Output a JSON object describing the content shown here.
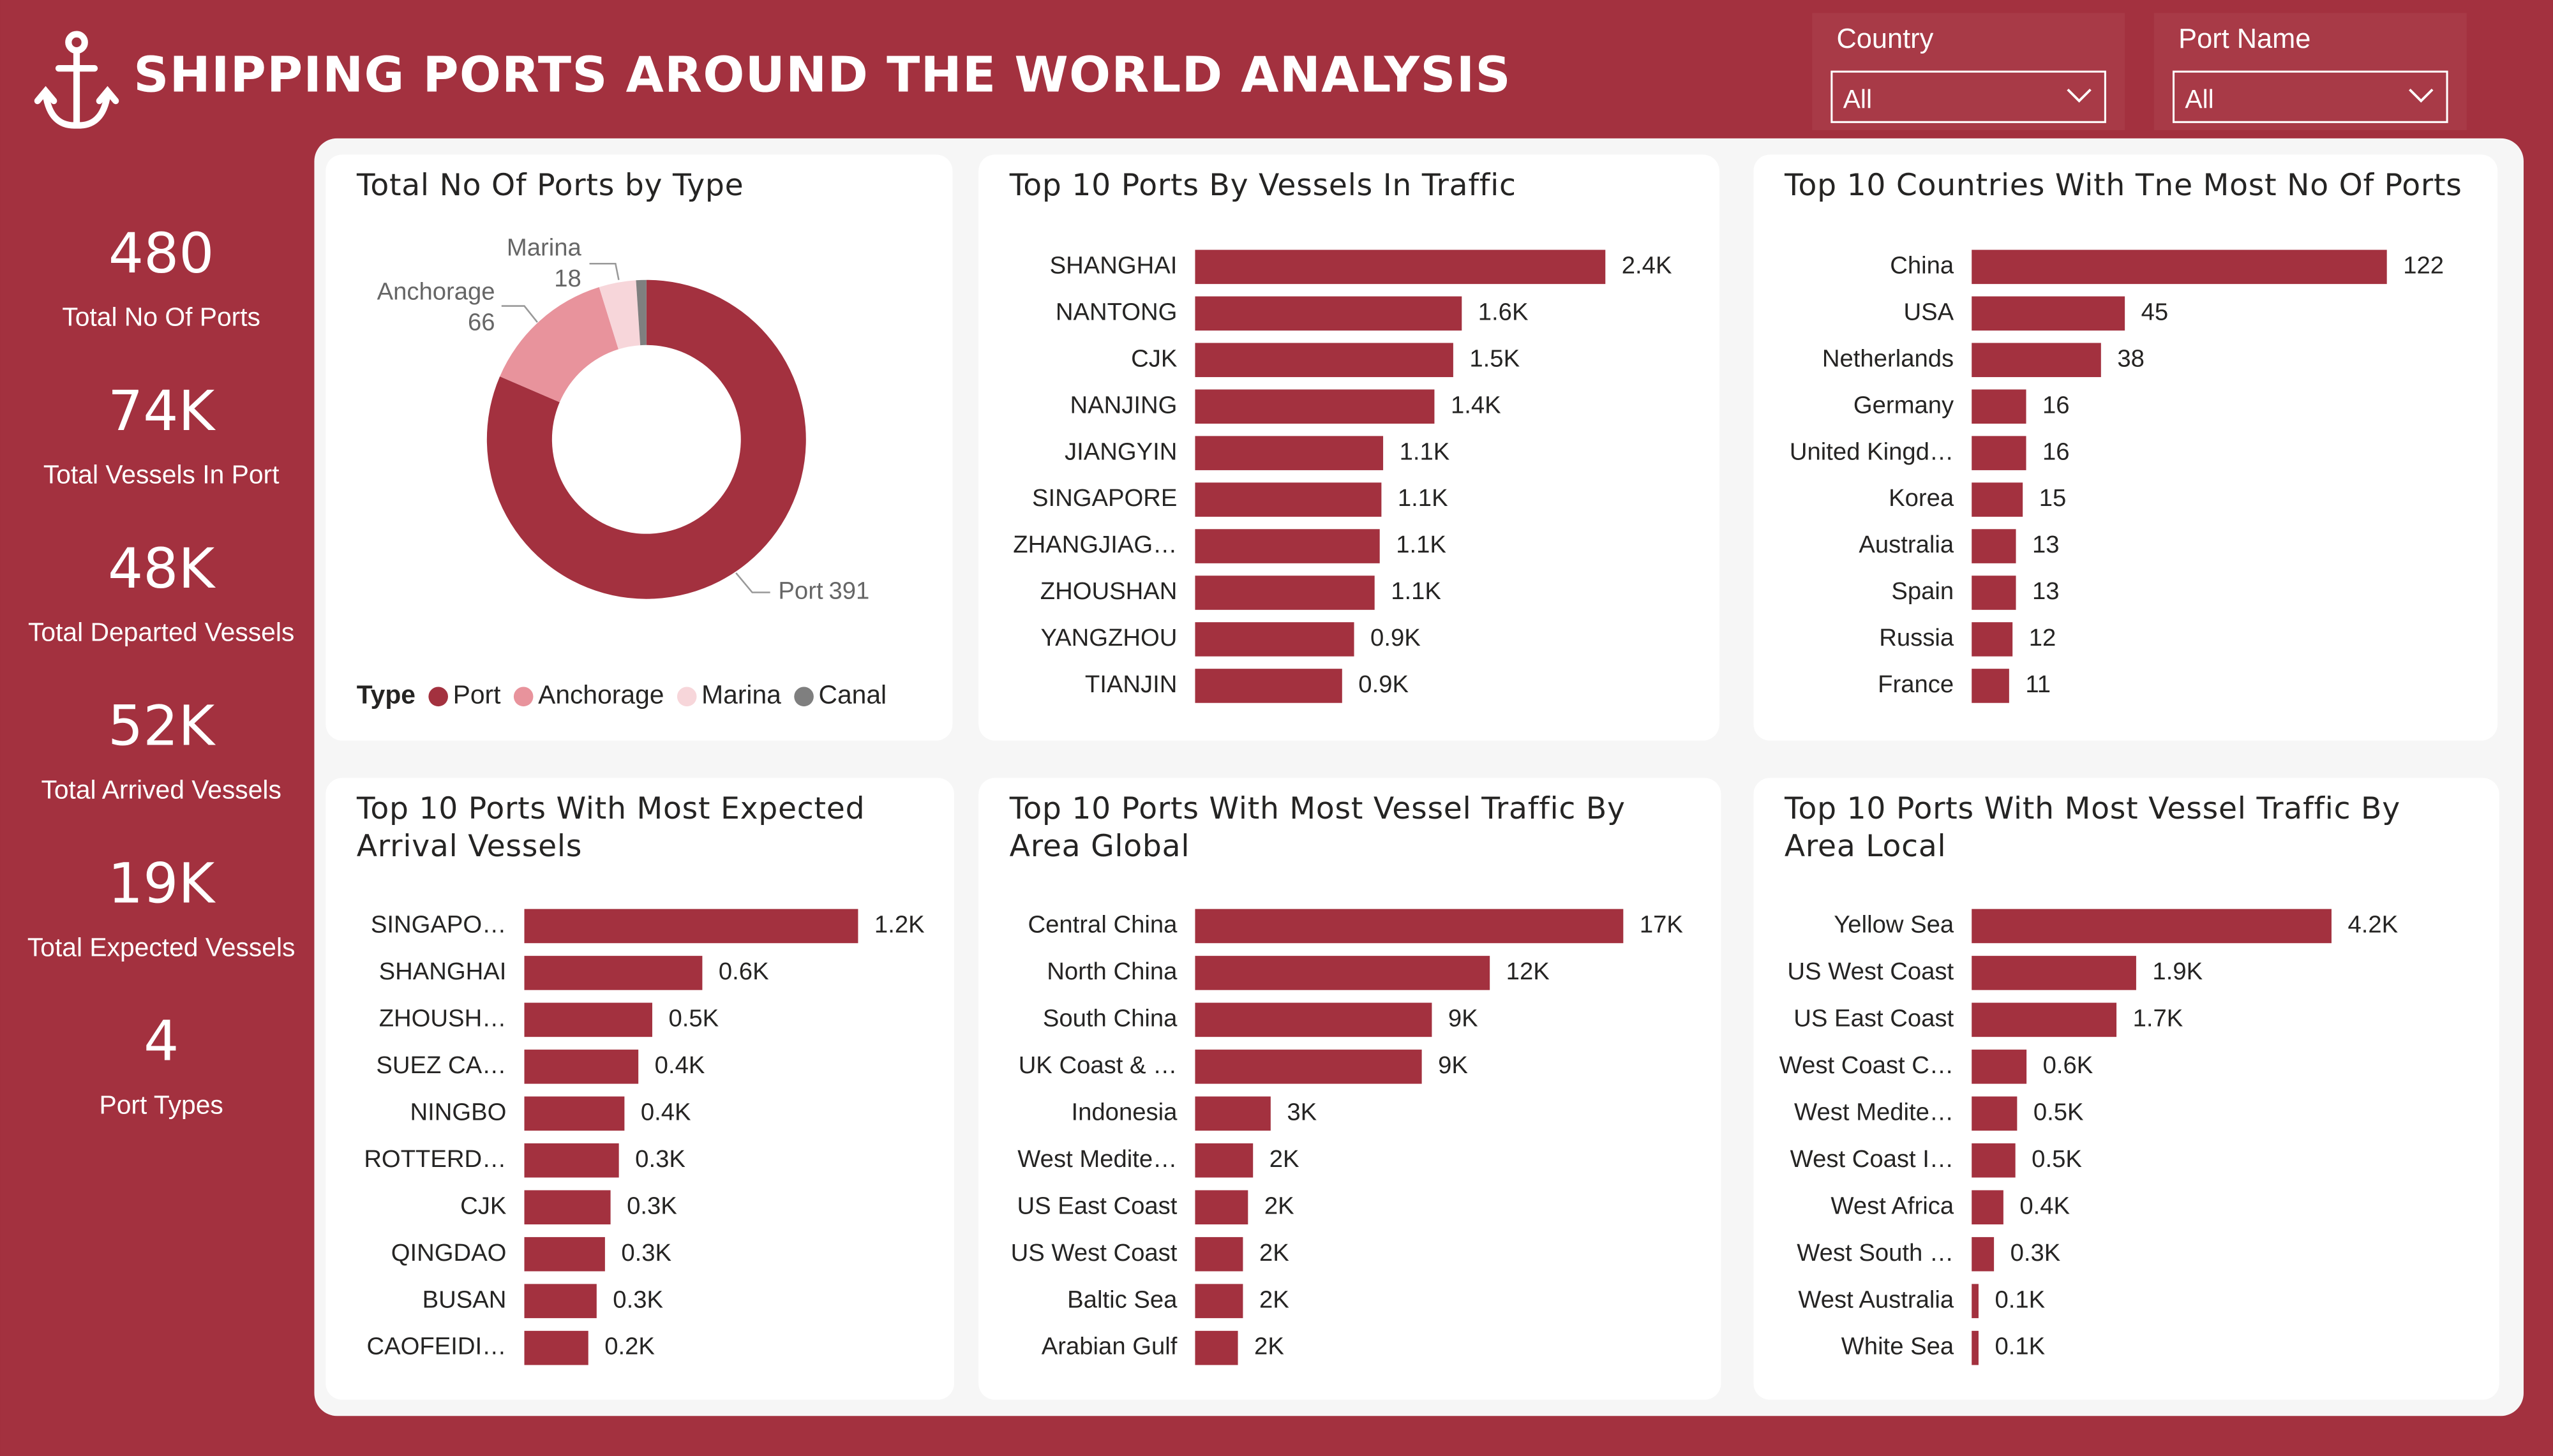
{
  "header": {
    "title": "SHIPPING PORTS AROUND THE WORLD ANALYSIS"
  },
  "slicers": [
    {
      "label": "Country",
      "value": "All"
    },
    {
      "label": "Port Name",
      "value": "All"
    }
  ],
  "kpis": [
    {
      "value": "480",
      "label": "Total No Of Ports"
    },
    {
      "value": "74K",
      "label": "Total Vessels In Port"
    },
    {
      "value": "48K",
      "label": "Total Departed Vessels"
    },
    {
      "value": "52K",
      "label": "Total Arrived Vessels"
    },
    {
      "value": "19K",
      "label": "Total Expected Vessels"
    },
    {
      "value": "4",
      "label": "Port Types"
    }
  ],
  "chart_data": [
    {
      "type": "donut",
      "title": "Total No Of Ports by Type",
      "categories": [
        "Port",
        "Anchorage",
        "Marina",
        "Canal"
      ],
      "values": [
        391,
        66,
        18,
        5
      ],
      "colors": [
        "#a3313f",
        "#e8939c",
        "#f7d6da",
        "#7f7f7f"
      ],
      "legend_title": "Type",
      "legend": "bottom-left"
    },
    {
      "type": "hbar",
      "title": "Top 10 Ports By Vessels In Traffic",
      "categories": [
        "SHANGHAI",
        "NANTONG",
        "CJK",
        "NANJING",
        "JIANGYIN",
        "SINGAPORE",
        "ZHANGJIAG…",
        "ZHOUSHAN",
        "YANGZHOU",
        "TIANJIN"
      ],
      "values": [
        2400,
        1560,
        1510,
        1400,
        1100,
        1090,
        1080,
        1050,
        930,
        860
      ],
      "value_labels": [
        "2.4K",
        "1.6K",
        "1.5K",
        "1.4K",
        "1.1K",
        "1.1K",
        "1.1K",
        "1.1K",
        "0.9K",
        "0.9K"
      ],
      "color": "#a3313f"
    },
    {
      "type": "hbar",
      "title": "Top 10 Countries With Tne Most No Of Ports",
      "categories": [
        "China",
        "USA",
        "Netherlands",
        "Germany",
        "United Kingd…",
        "Korea",
        "Australia",
        "Spain",
        "Russia",
        "France"
      ],
      "values": [
        122,
        45,
        38,
        16,
        16,
        15,
        13,
        13,
        12,
        11
      ],
      "color": "#a3313f"
    },
    {
      "type": "hbar",
      "title": "Top 10 Ports With Most Expected Arrival Vessels",
      "categories": [
        "SINGAPO…",
        "SHANGHAI",
        "ZHOUSH…",
        "SUEZ CA…",
        "NINGBO",
        "ROTTERD…",
        "CJK",
        "QINGDAO",
        "BUSAN",
        "CAOFEIDI…"
      ],
      "values": [
        1200,
        640,
        460,
        410,
        360,
        340,
        310,
        290,
        260,
        230
      ],
      "value_labels": [
        "1.2K",
        "0.6K",
        "0.5K",
        "0.4K",
        "0.4K",
        "0.3K",
        "0.3K",
        "0.3K",
        "0.3K",
        "0.2K"
      ],
      "color": "#a3313f"
    },
    {
      "type": "hbar",
      "title": "Top 10 Ports With Most Vessel Traffic By Area Global",
      "categories": [
        "Central China",
        "North China",
        "South China",
        "UK Coast & …",
        "Indonesia",
        "West Medite…",
        "US East Coast",
        "US West Coast",
        "Baltic Sea",
        "Arabian Gulf"
      ],
      "values": [
        17000,
        11700,
        9400,
        9000,
        3000,
        2300,
        2100,
        1900,
        1900,
        1700
      ],
      "value_labels": [
        "17K",
        "12K",
        "9K",
        "9K",
        "3K",
        "2K",
        "2K",
        "2K",
        "2K",
        "2K"
      ],
      "color": "#a3313f"
    },
    {
      "type": "hbar",
      "title": "Top 10 Ports With Most Vessel Traffic By Area Local",
      "categories": [
        "Yellow Sea",
        "US West Coast",
        "US East Coast",
        "West Coast C…",
        "West Medite…",
        "West Coast I…",
        "West Africa",
        "West South …",
        "West Australia",
        "White Sea"
      ],
      "values": [
        4200,
        1920,
        1690,
        640,
        530,
        510,
        370,
        260,
        80,
        80
      ],
      "value_labels": [
        "4.2K",
        "1.9K",
        "1.7K",
        "0.6K",
        "0.5K",
        "0.5K",
        "0.4K",
        "0.3K",
        "0.1K",
        "0.1K"
      ],
      "color": "#a3313f"
    }
  ]
}
